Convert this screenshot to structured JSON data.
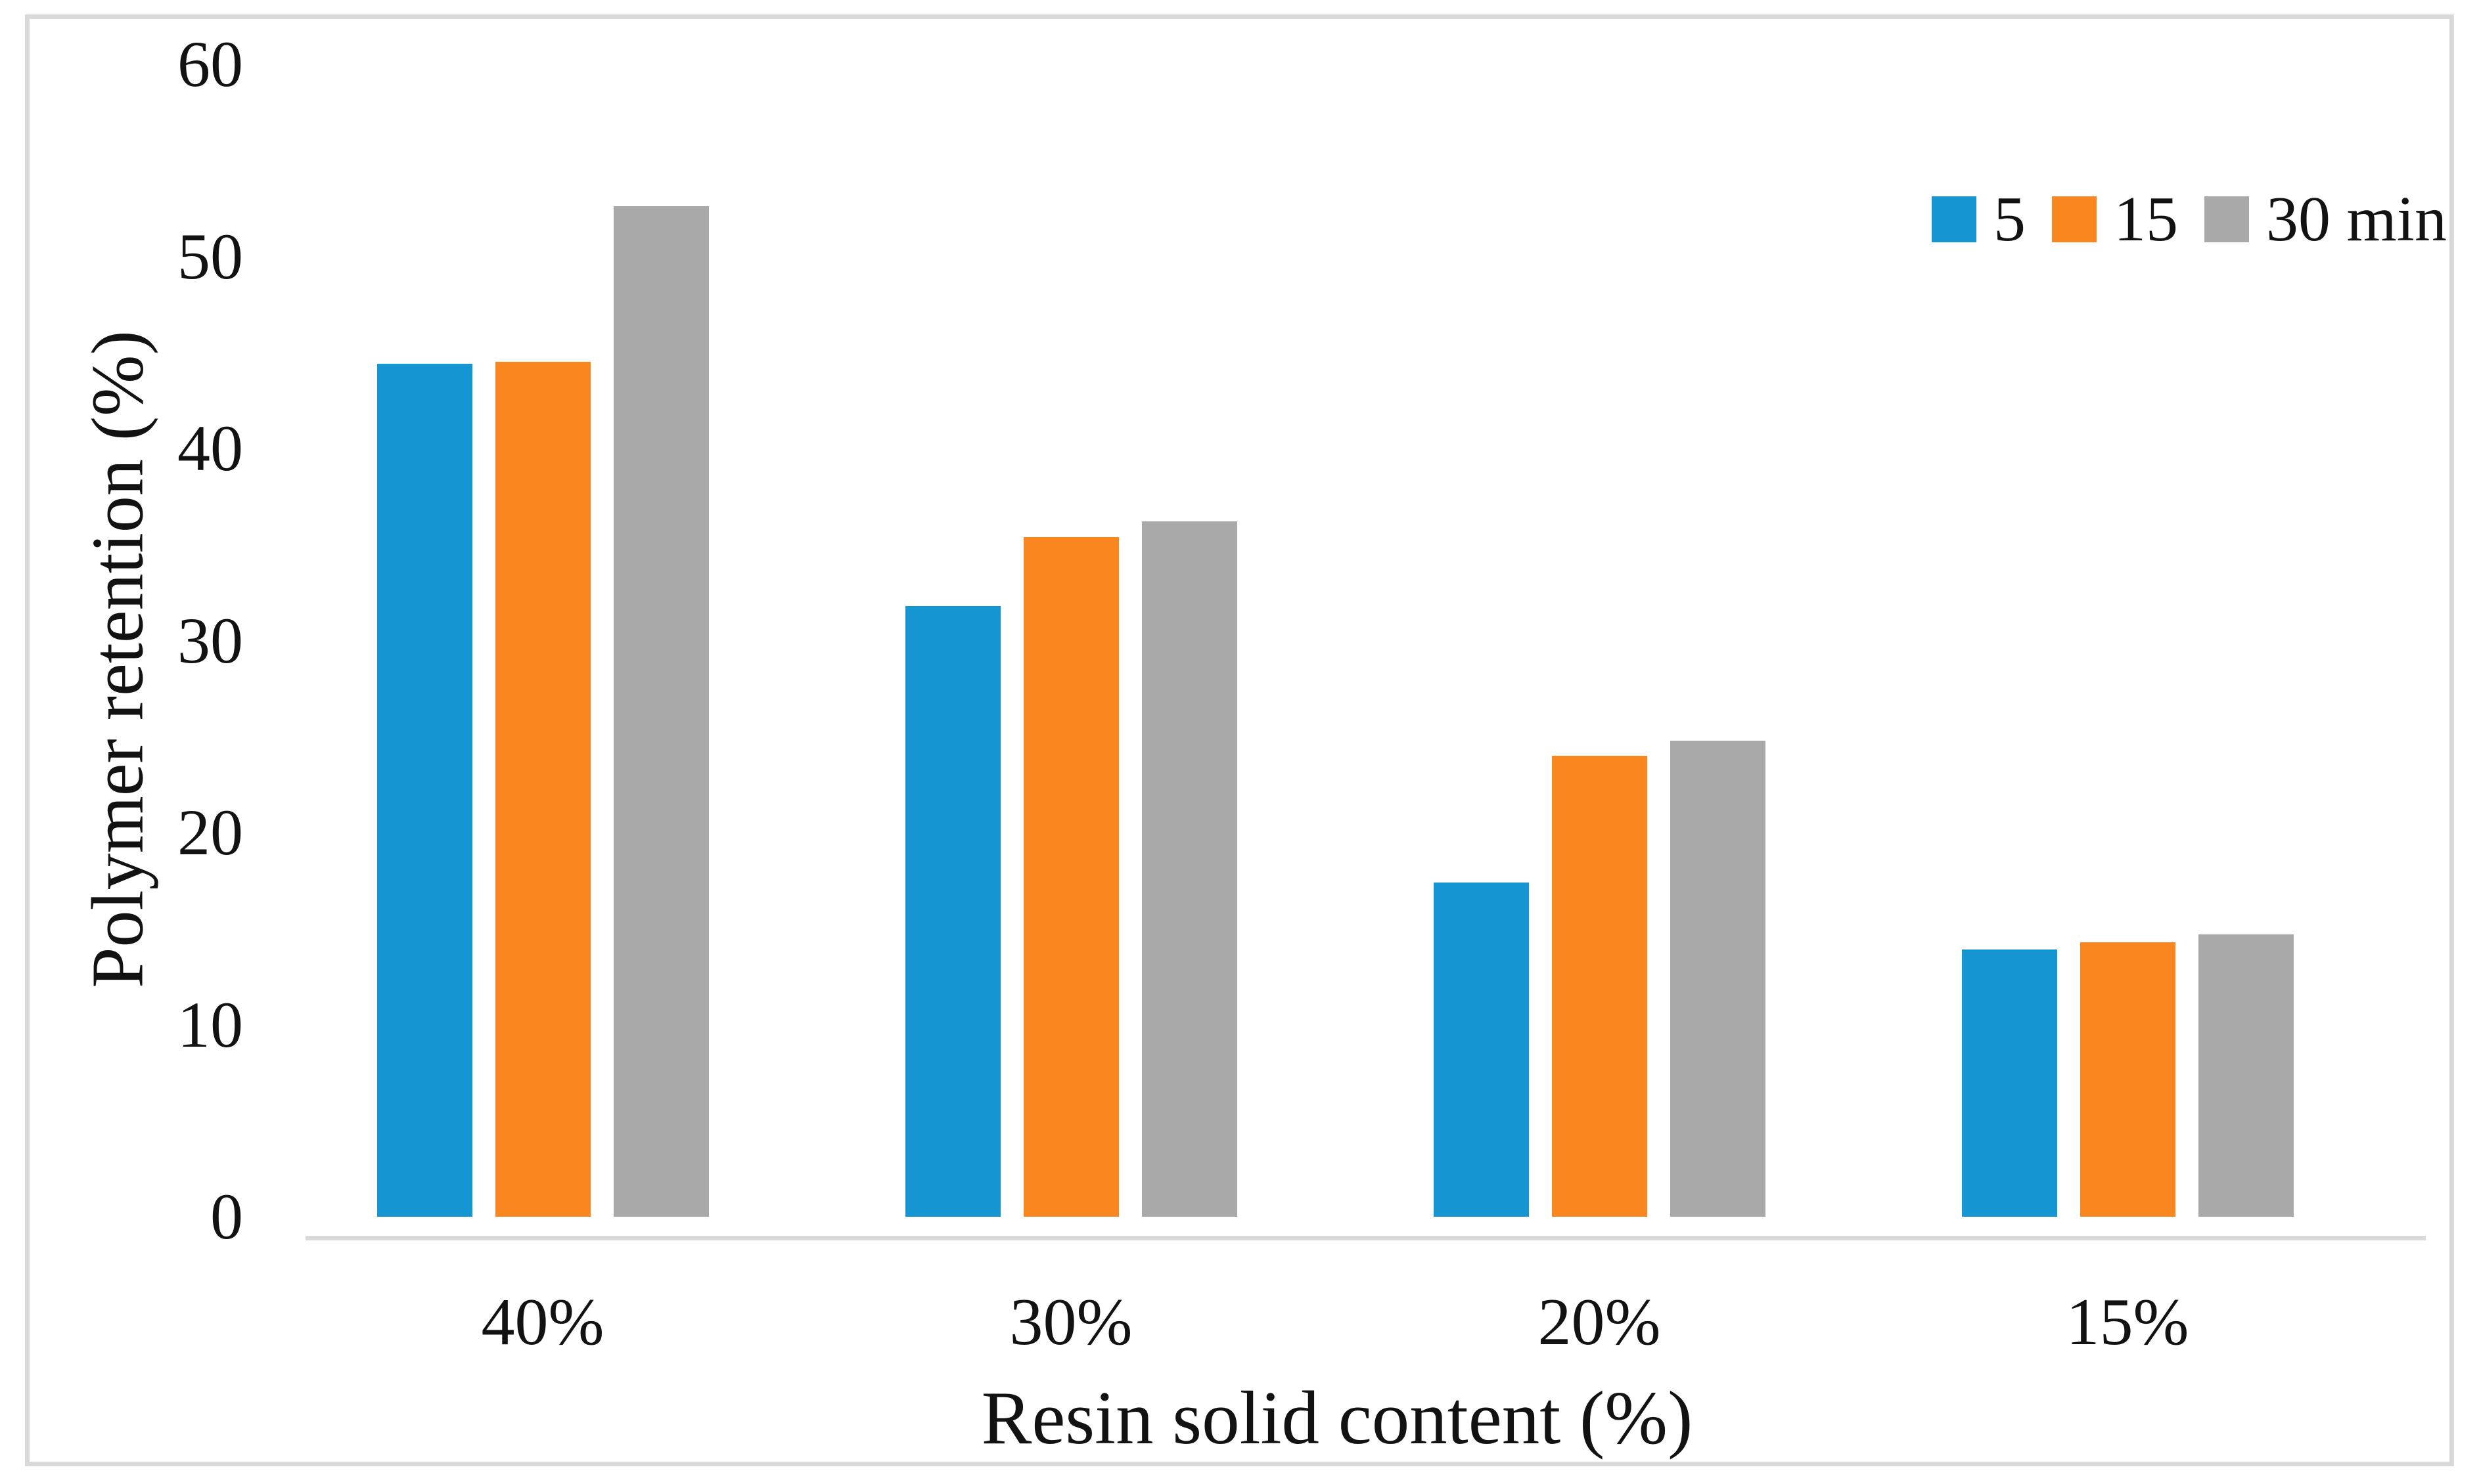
{
  "figure": {
    "y_axis_title": "Polymer retention (%)",
    "x_axis_title": "Resin solid content (%)"
  },
  "chart_data": {
    "type": "bar",
    "title": "",
    "categories": [
      "40%",
      "30%",
      "20%",
      "15%"
    ],
    "series": [
      {
        "name": "5",
        "color": "#1596d2",
        "values": [
          44.4,
          31.8,
          17.4,
          13.9
        ]
      },
      {
        "name": "15",
        "color": "#f9861e",
        "values": [
          44.5,
          35.4,
          24.0,
          14.3
        ]
      },
      {
        "name": "30 min",
        "color": "#a9a9a9",
        "values": [
          52.6,
          36.2,
          24.8,
          14.7
        ]
      }
    ],
    "xlabel": "Resin solid content (%)",
    "ylabel": "Polymer retention (%)",
    "ylim": [
      0,
      60
    ],
    "ytick_step": 10,
    "yticks": [
      "0",
      "10",
      "20",
      "30",
      "40",
      "50",
      "60"
    ],
    "legend_position": "top-right",
    "legend_labels": [
      "5",
      "15",
      "30 min"
    ],
    "grid": false,
    "axis_line_color": "#d9d9d9",
    "frame_color": "#d9d9d9",
    "text_color": "#121212"
  }
}
